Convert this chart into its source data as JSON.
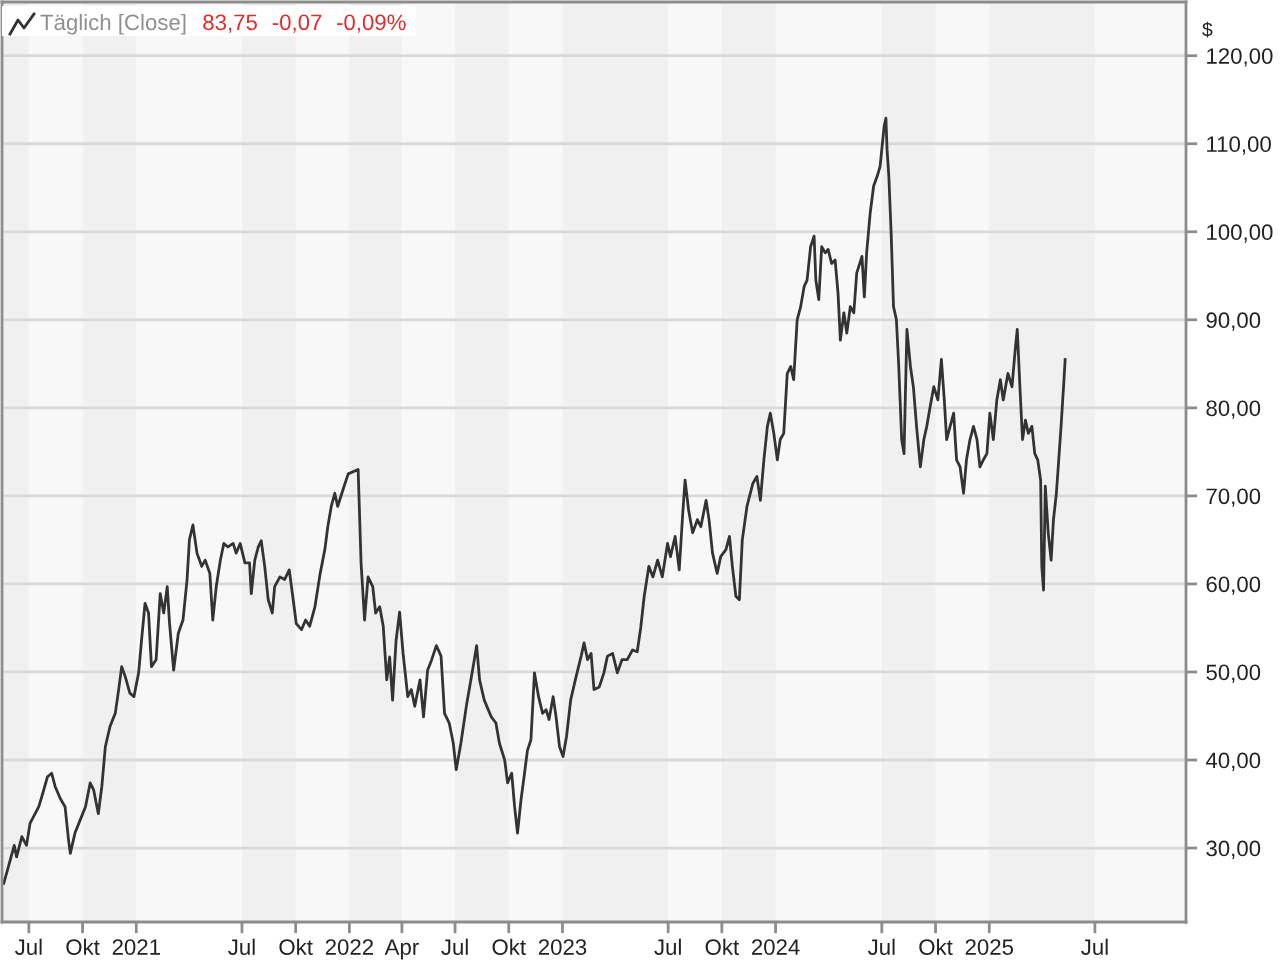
{
  "chart_data": {
    "type": "line",
    "title": "Täglich [Close]",
    "annotations": [
      "83,75",
      "-0,07",
      "-0,09%"
    ],
    "ylabel": "$",
    "x": [
      "2020-05-19",
      "2020-05-27",
      "2020-06-06",
      "2020-06-10",
      "2020-06-19",
      "2020-06-27",
      "2020-07-03",
      "2020-07-18",
      "2020-07-23",
      "2020-08-02",
      "2020-08-09",
      "2020-08-15",
      "2020-08-24",
      "2020-09-01",
      "2020-09-07",
      "2020-09-10",
      "2020-09-18",
      "2020-09-27",
      "2020-10-06",
      "2020-10-14",
      "2020-10-20",
      "2020-10-28",
      "2020-11-03",
      "2020-11-09",
      "2020-11-17",
      "2020-11-26",
      "2020-12-01",
      "2020-12-07",
      "2020-12-13",
      "2020-12-21",
      "2020-12-28",
      "2021-01-05",
      "2021-01-10",
      "2021-01-16",
      "2021-01-22",
      "2021-01-27",
      "2021-02-04",
      "2021-02-11",
      "2021-02-17",
      "2021-02-23",
      "2021-02-27",
      "2021-03-06",
      "2021-03-14",
      "2021-03-22",
      "2021-03-29",
      "2021-04-02",
      "2021-04-08",
      "2021-04-15",
      "2021-04-23",
      "2021-04-29",
      "2021-05-07",
      "2021-05-12",
      "2021-05-18",
      "2021-05-25",
      "2021-05-31",
      "2021-06-07",
      "2021-06-16",
      "2021-06-21",
      "2021-06-28",
      "2021-07-06",
      "2021-07-14",
      "2021-07-17",
      "2021-07-23",
      "2021-07-29",
      "2021-08-03",
      "2021-08-09",
      "2021-08-15",
      "2021-08-22",
      "2021-08-26",
      "2021-09-04",
      "2021-09-12",
      "2021-09-20",
      "2021-09-26",
      "2021-10-02",
      "2021-10-11",
      "2021-10-18",
      "2021-10-25",
      "2021-11-03",
      "2021-11-12",
      "2021-11-20",
      "2021-11-25",
      "2021-12-01",
      "2021-12-07",
      "2021-12-12",
      "2021-12-21",
      "2021-12-30",
      "2022-01-16",
      "2022-01-18",
      "2022-01-21",
      "2022-01-27",
      "2022-02-02",
      "2022-02-10",
      "2022-02-15",
      "2022-02-22",
      "2022-02-28",
      "2022-03-06",
      "2022-03-11",
      "2022-03-16",
      "2022-03-22",
      "2022-03-28",
      "2022-04-03",
      "2022-04-11",
      "2022-04-17",
      "2022-04-23",
      "2022-05-02",
      "2022-05-08",
      "2022-05-15",
      "2022-05-22",
      "2022-05-30",
      "2022-06-07",
      "2022-06-13",
      "2022-06-21",
      "2022-06-28",
      "2022-07-03",
      "2022-07-11",
      "2022-07-21",
      "2022-07-26",
      "2022-08-01",
      "2022-08-07",
      "2022-08-12",
      "2022-08-20",
      "2022-09-01",
      "2022-09-09",
      "2022-09-15",
      "2022-09-24",
      "2022-09-29",
      "2022-10-06",
      "2022-10-11",
      "2022-10-16",
      "2022-10-22",
      "2022-10-28",
      "2022-11-02",
      "2022-11-08",
      "2022-11-14",
      "2022-11-21",
      "2022-11-28",
      "2022-12-04",
      "2022-12-09",
      "2022-12-16",
      "2022-12-21",
      "2022-12-27",
      "2023-01-02",
      "2023-01-08",
      "2023-01-15",
      "2023-01-23",
      "2023-02-02",
      "2023-02-07",
      "2023-02-13",
      "2023-02-19",
      "2023-02-24",
      "2023-03-05",
      "2023-03-13",
      "2023-03-19",
      "2023-03-28",
      "2023-04-05",
      "2023-04-13",
      "2023-04-22",
      "2023-05-01",
      "2023-05-09",
      "2023-05-15",
      "2023-05-21",
      "2023-05-29",
      "2023-06-05",
      "2023-06-13",
      "2023-06-21",
      "2023-06-30",
      "2023-07-05",
      "2023-07-13",
      "2023-07-20",
      "2023-07-26",
      "2023-07-30",
      "2023-08-05",
      "2023-08-12",
      "2023-08-20",
      "2023-08-26",
      "2023-09-04",
      "2023-09-09",
      "2023-09-15",
      "2023-09-23",
      "2023-09-29",
      "2023-10-08",
      "2023-10-14",
      "2023-10-19",
      "2023-10-25",
      "2023-10-31",
      "2023-11-05",
      "2023-11-13",
      "2023-11-23",
      "2023-11-30",
      "2023-12-06",
      "2023-12-12",
      "2023-12-18",
      "2023-12-23",
      "2023-12-29",
      "2024-01-04",
      "2024-01-09",
      "2024-01-15",
      "2024-01-21",
      "2024-01-27",
      "2024-02-01",
      "2024-02-07",
      "2024-02-13",
      "2024-02-19",
      "2024-02-24",
      "2024-03-01",
      "2024-03-07",
      "2024-03-10",
      "2024-03-15",
      "2024-03-20",
      "2024-03-26",
      "2024-03-31",
      "2024-04-06",
      "2024-04-12",
      "2024-04-17",
      "2024-04-21",
      "2024-04-27",
      "2024-05-02",
      "2024-05-08",
      "2024-05-14",
      "2024-05-19",
      "2024-05-28",
      "2024-06-01",
      "2024-06-05",
      "2024-06-11",
      "2024-06-17",
      "2024-06-23",
      "2024-06-28",
      "2024-07-05",
      "2024-07-08",
      "2024-07-10",
      "2024-07-13",
      "2024-07-17",
      "2024-07-21",
      "2024-07-26",
      "2024-07-30",
      "2024-08-04",
      "2024-08-08",
      "2024-08-13",
      "2024-08-19",
      "2024-08-24",
      "2024-08-30",
      "2024-09-05",
      "2024-09-11",
      "2024-09-16",
      "2024-09-22",
      "2024-09-28",
      "2024-10-05",
      "2024-10-11",
      "2024-10-16",
      "2024-10-20",
      "2024-10-26",
      "2024-11-01",
      "2024-11-06",
      "2024-11-12",
      "2024-11-18",
      "2024-11-23",
      "2024-11-29",
      "2024-12-05",
      "2024-12-11",
      "2024-12-16",
      "2024-12-22",
      "2024-12-28",
      "2025-01-02",
      "2025-01-08",
      "2025-01-14",
      "2025-01-20",
      "2025-01-25",
      "2025-02-02",
      "2025-02-09",
      "2025-02-15",
      "2025-02-18",
      "2025-02-23",
      "2025-02-27",
      "2025-03-04",
      "2025-03-09",
      "2025-03-15",
      "2025-03-20",
      "2025-03-25",
      "2025-03-30",
      "2025-04-01",
      "2025-04-04",
      "2025-04-07",
      "2025-04-12",
      "2025-04-17",
      "2025-04-21",
      "2025-04-26",
      "2025-04-30",
      "2025-05-04",
      "2025-05-09",
      "2025-05-11"
    ],
    "series": [
      {
        "color": "#333333",
        "values": [
          26.0,
          27.9,
          30.3,
          29.0,
          31.3,
          30.3,
          32.8,
          34.7,
          35.8,
          38.1,
          38.5,
          37.0,
          35.6,
          34.7,
          30.9,
          29.4,
          31.7,
          33.2,
          34.7,
          37.4,
          36.6,
          33.9,
          37.0,
          41.5,
          43.8,
          45.3,
          47.6,
          50.6,
          49.5,
          47.6,
          47.2,
          49.9,
          53.6,
          57.8,
          56.7,
          50.6,
          51.4,
          58.9,
          56.7,
          59.7,
          55.5,
          50.2,
          54.4,
          55.9,
          60.5,
          65.0,
          66.7,
          63.5,
          62.0,
          62.7,
          61.2,
          55.9,
          59.7,
          62.7,
          64.6,
          64.2,
          64.6,
          63.5,
          64.6,
          62.4,
          62.4,
          58.9,
          62.7,
          64.2,
          64.9,
          62.0,
          58.2,
          56.7,
          59.7,
          60.8,
          60.5,
          61.6,
          58.6,
          55.5,
          54.8,
          55.9,
          55.2,
          57.4,
          61.2,
          63.9,
          66.5,
          68.8,
          70.3,
          68.8,
          70.7,
          72.5,
          73.0,
          68.8,
          62.4,
          55.9,
          60.8,
          59.7,
          56.7,
          57.4,
          55.2,
          49.1,
          51.7,
          46.8,
          53.6,
          56.8,
          52.1,
          47.2,
          48.0,
          46.1,
          49.1,
          44.9,
          50.2,
          51.4,
          53.0,
          51.8,
          45.3,
          44.2,
          41.9,
          38.9,
          41.9,
          46.4,
          48.3,
          50.6,
          53.0,
          49.1,
          46.8,
          44.9,
          44.2,
          41.9,
          40.0,
          37.4,
          38.5,
          34.7,
          31.7,
          35.5,
          38.5,
          41.1,
          42.3,
          49.9,
          47.2,
          45.3,
          45.7,
          44.6,
          47.2,
          44.9,
          41.5,
          40.4,
          42.7,
          46.8,
          49.1,
          51.8,
          53.3,
          51.4,
          52.1,
          48.0,
          48.3,
          49.9,
          51.8,
          52.1,
          49.9,
          51.4,
          51.4,
          52.5,
          52.3,
          55.0,
          58.6,
          62.0,
          60.8,
          62.7,
          60.8,
          64.6,
          63.1,
          65.4,
          61.6,
          68.0,
          71.8,
          68.4,
          65.8,
          67.3,
          66.5,
          69.5,
          67.3,
          63.5,
          61.2,
          63.1,
          63.9,
          65.4,
          62.0,
          58.6,
          58.2,
          65.0,
          68.8,
          71.4,
          72.2,
          69.5,
          74.1,
          77.9,
          79.4,
          77.1,
          74.1,
          76.4,
          77.1,
          83.9,
          84.7,
          83.2,
          90.0,
          91.5,
          93.8,
          94.5,
          98.3,
          99.5,
          94.5,
          92.3,
          98.3,
          97.6,
          98.0,
          96.4,
          96.8,
          93.0,
          87.7,
          90.8,
          88.5,
          91.5,
          90.8,
          95.3,
          97.2,
          92.6,
          97.6,
          102.1,
          105.2,
          106.3,
          107.4,
          112.0,
          112.9,
          109.3,
          106.3,
          99.8,
          91.5,
          90.0,
          84.7,
          76.4,
          74.8,
          88.9,
          84.7,
          82.4,
          77.5,
          73.3,
          76.4,
          77.9,
          80.2,
          82.4,
          80.9,
          85.5,
          80.9,
          76.4,
          77.9,
          79.4,
          74.1,
          73.3,
          70.3,
          74.1,
          76.4,
          77.9,
          76.4,
          73.3,
          74.1,
          74.8,
          79.4,
          76.4,
          80.9,
          83.2,
          80.9,
          83.9,
          82.4,
          87.0,
          88.9,
          81.7,
          76.4,
          78.6,
          77.1,
          77.9,
          74.8,
          74.1,
          71.8,
          62.0,
          59.3,
          71.1,
          65.8,
          62.7,
          67.3,
          70.3,
          74.1,
          77.9,
          83.2,
          85.5
        ]
      }
    ],
    "xlim": [
      "2020-05-16",
      "2025-12-04"
    ],
    "ylim": [
      21.6,
      126.1
    ],
    "xticks": [
      {
        "value": "2020-07-01",
        "label": "Jul"
      },
      {
        "value": "2020-10-01",
        "label": "Okt"
      },
      {
        "value": "2021-01-01",
        "label": "2021"
      },
      {
        "value": "2021-07-01",
        "label": "Jul"
      },
      {
        "value": "2021-10-01",
        "label": "Okt"
      },
      {
        "value": "2022-01-01",
        "label": "2022"
      },
      {
        "value": "2022-04-01",
        "label": "Apr"
      },
      {
        "value": "2022-07-01",
        "label": "Jul"
      },
      {
        "value": "2022-10-01",
        "label": "Okt"
      },
      {
        "value": "2023-01-01",
        "label": "2023"
      },
      {
        "value": "2023-07-01",
        "label": "Jul"
      },
      {
        "value": "2023-10-01",
        "label": "Okt"
      },
      {
        "value": "2024-01-01",
        "label": "2024"
      },
      {
        "value": "2024-07-01",
        "label": "Jul"
      },
      {
        "value": "2024-10-01",
        "label": "Okt"
      },
      {
        "value": "2025-01-01",
        "label": "2025"
      },
      {
        "value": "2025-07-01",
        "label": "Jul"
      }
    ],
    "yticks": [
      {
        "value": 30,
        "label": "30,00"
      },
      {
        "value": 40,
        "label": "40,00"
      },
      {
        "value": 50,
        "label": "50,00"
      },
      {
        "value": 60,
        "label": "60,00"
      },
      {
        "value": 70,
        "label": "70,00"
      },
      {
        "value": 80,
        "label": "80,00"
      },
      {
        "value": 90,
        "label": "90,00"
      },
      {
        "value": 100,
        "label": "100,00"
      },
      {
        "value": 110,
        "label": "110,00"
      },
      {
        "value": 120,
        "label": "120,00"
      }
    ],
    "grid": "y",
    "bands": [
      {
        "axis": "x",
        "from": "2020-05-16",
        "to": "2020-07-01",
        "color": "#f0f0f0"
      },
      {
        "axis": "x",
        "from": "2020-10-01",
        "to": "2021-01-01",
        "color": "#f0f0f0"
      },
      {
        "axis": "x",
        "from": "2021-07-01",
        "to": "2021-10-01",
        "color": "#f0f0f0"
      },
      {
        "axis": "x",
        "from": "2022-01-01",
        "to": "2022-04-01",
        "color": "#f0f0f0"
      },
      {
        "axis": "x",
        "from": "2022-07-01",
        "to": "2022-10-01",
        "color": "#f0f0f0"
      },
      {
        "axis": "x",
        "from": "2023-01-01",
        "to": "2023-07-01",
        "color": "#f0f0f0"
      },
      {
        "axis": "x",
        "from": "2023-10-01",
        "to": "2024-01-01",
        "color": "#f0f0f0"
      },
      {
        "axis": "x",
        "from": "2024-07-01",
        "to": "2024-10-01",
        "color": "#f0f0f0"
      },
      {
        "axis": "x",
        "from": "2025-01-01",
        "to": "2025-07-01",
        "color": "#f0f0f0"
      }
    ]
  }
}
